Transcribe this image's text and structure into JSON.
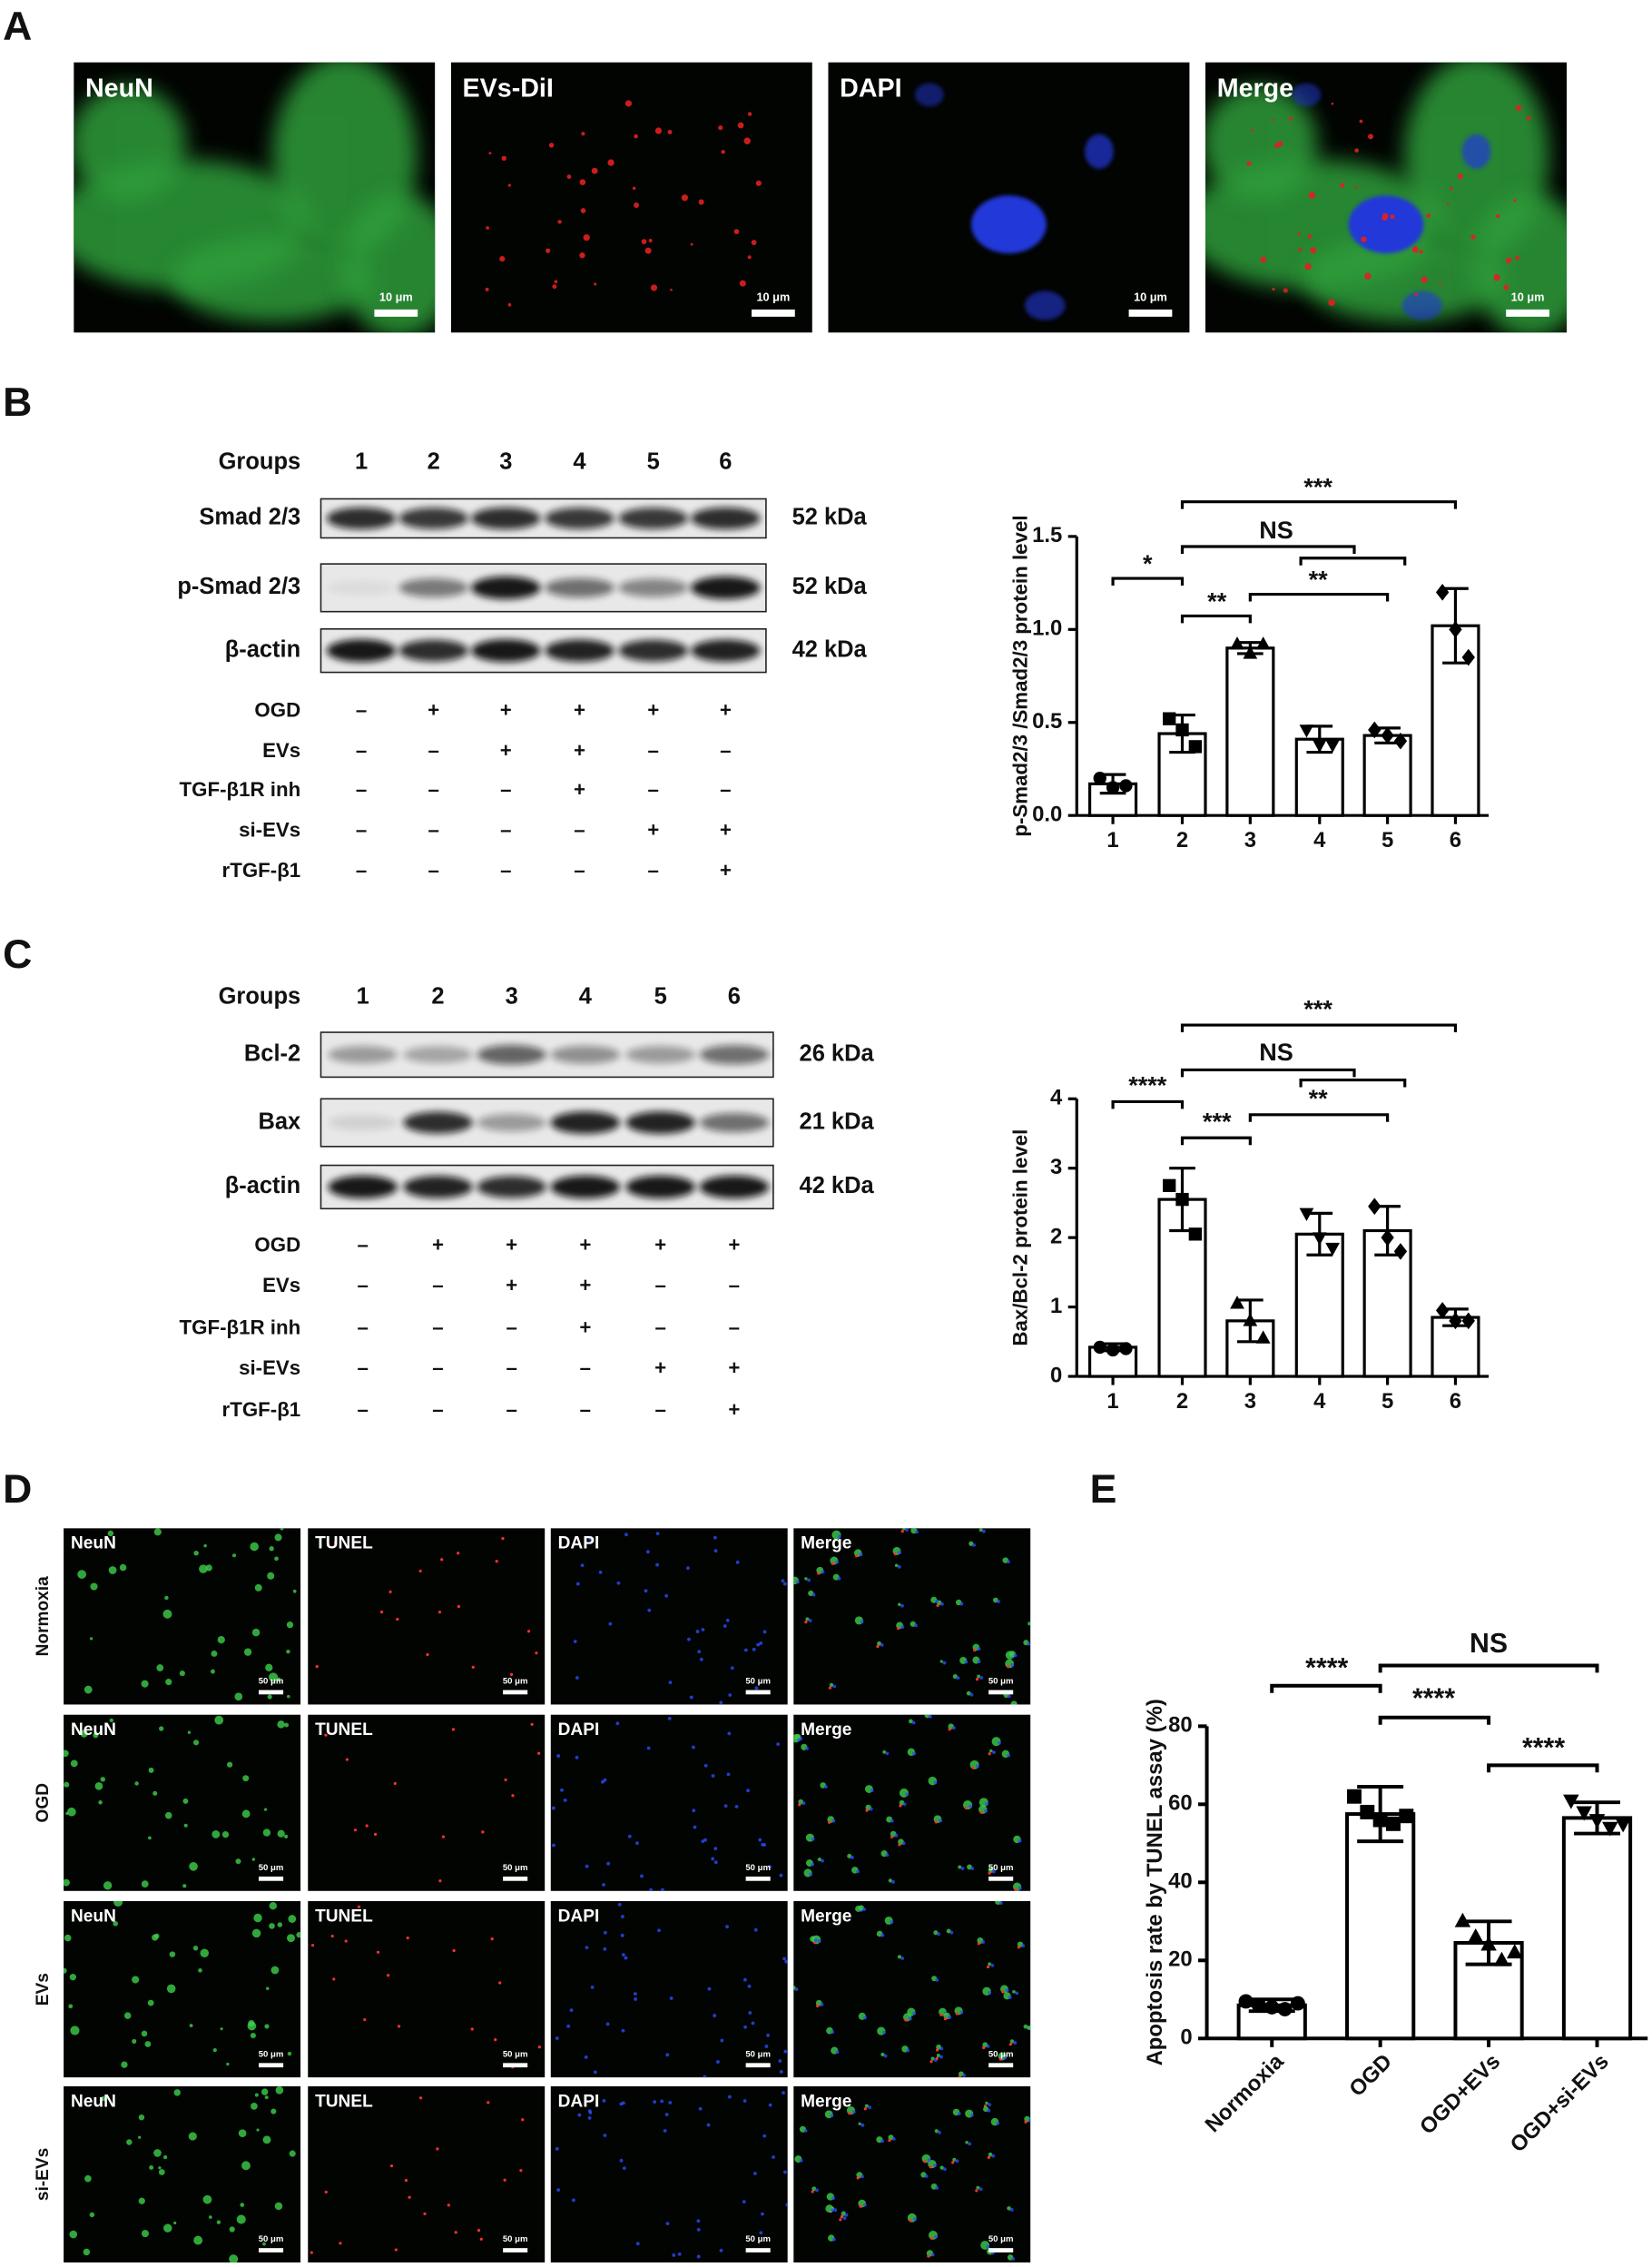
{
  "panel_labels": [
    "A",
    "B",
    "C",
    "D",
    "E"
  ],
  "panel_a": {
    "channels": [
      "NeuN",
      "EVs-DiI",
      "DAPI",
      "Merge"
    ],
    "scale_bar": "10 μm"
  },
  "panel_b_blot": {
    "groups_label": "Groups",
    "lanes": [
      "1",
      "2",
      "3",
      "4",
      "5",
      "6"
    ],
    "bands": [
      {
        "name": "Smad 2/3",
        "size": "52 kDa"
      },
      {
        "name": "p-Smad 2/3",
        "size": "52 kDa"
      },
      {
        "name": "β-actin",
        "size": "42 kDa"
      }
    ],
    "treatments": [
      {
        "name": "OGD",
        "signs": [
          "–",
          "+",
          "+",
          "+",
          "+",
          "+"
        ]
      },
      {
        "name": "EVs",
        "signs": [
          "–",
          "–",
          "+",
          "+",
          "–",
          "–"
        ]
      },
      {
        "name": "TGF-β1R inh",
        "signs": [
          "–",
          "–",
          "–",
          "+",
          "–",
          "–"
        ]
      },
      {
        "name": "si-EVs",
        "signs": [
          "–",
          "–",
          "–",
          "–",
          "+",
          "+"
        ]
      },
      {
        "name": "rTGF-β1",
        "signs": [
          "–",
          "–",
          "–",
          "–",
          "–",
          "+"
        ]
      }
    ]
  },
  "panel_c_blot": {
    "groups_label": "Groups",
    "lanes": [
      "1",
      "2",
      "3",
      "4",
      "5",
      "6"
    ],
    "bands": [
      {
        "name": "Bcl-2",
        "size": "26 kDa"
      },
      {
        "name": "Bax",
        "size": "21 kDa"
      },
      {
        "name": "β-actin",
        "size": "42 kDa"
      }
    ],
    "treatments": [
      {
        "name": "OGD",
        "signs": [
          "–",
          "+",
          "+",
          "+",
          "+",
          "+"
        ]
      },
      {
        "name": "EVs",
        "signs": [
          "–",
          "–",
          "+",
          "+",
          "–",
          "–"
        ]
      },
      {
        "name": "TGF-β1R inh",
        "signs": [
          "–",
          "–",
          "–",
          "+",
          "–",
          "–"
        ]
      },
      {
        "name": "si-EVs",
        "signs": [
          "–",
          "–",
          "–",
          "–",
          "+",
          "+"
        ]
      },
      {
        "name": "rTGF-β1",
        "signs": [
          "–",
          "–",
          "–",
          "–",
          "–",
          "+"
        ]
      }
    ]
  },
  "panel_d": {
    "rows": [
      "Normoxia",
      "OGD",
      "EVs",
      "si-EVs"
    ],
    "channels": [
      "NeuN",
      "TUNEL",
      "DAPI",
      "Merge"
    ],
    "scale_bar": "50 μm"
  },
  "chart_data": [
    {
      "type": "bar",
      "y_label": "p-Smad2/3 /Smad2/3 protein level",
      "categories": [
        "1",
        "2",
        "3",
        "4",
        "5",
        "6"
      ],
      "values": [
        0.17,
        0.44,
        0.9,
        0.41,
        0.43,
        1.02
      ],
      "errors": [
        0.05,
        0.1,
        0.03,
        0.07,
        0.04,
        0.2
      ],
      "points": [
        [
          0.2,
          0.15,
          0.16
        ],
        [
          0.52,
          0.46,
          0.37
        ],
        [
          0.92,
          0.87,
          0.92
        ],
        [
          0.46,
          0.38,
          0.38
        ],
        [
          0.46,
          0.43,
          0.4
        ],
        [
          1.2,
          1.0,
          0.85
        ]
      ],
      "markers": [
        "circle",
        "square",
        "triangle",
        "triangle-down",
        "diamond",
        "diamond"
      ],
      "ylim": [
        0,
        1.5
      ],
      "yticks": [
        {
          "value": 0,
          "label": "0.0"
        },
        0.5,
        {
          "value": 1,
          "label": "1.0"
        },
        1.5
      ],
      "color": "#ffffff",
      "annotations": [
        {
          "text": "*"
        },
        {
          "text": "**"
        },
        {
          "text": "**"
        },
        {
          "text": "NS"
        },
        {
          "text": "***"
        }
      ]
    },
    {
      "type": "bar",
      "y_label": "Bax/Bcl-2 protein level",
      "categories": [
        "1",
        "2",
        "3",
        "4",
        "5",
        "6"
      ],
      "values": [
        0.42,
        2.55,
        0.8,
        2.05,
        2.1,
        0.85
      ],
      "errors": [
        0.05,
        0.45,
        0.3,
        0.3,
        0.35,
        0.12
      ],
      "points": [
        [
          0.42,
          0.38,
          0.4
        ],
        [
          2.75,
          2.55,
          2.05
        ],
        [
          1.05,
          0.8,
          0.55
        ],
        [
          2.35,
          2.0,
          1.85
        ],
        [
          2.45,
          2.0,
          1.8
        ],
        [
          0.95,
          0.8,
          0.8
        ]
      ],
      "markers": [
        "circle",
        "square",
        "triangle",
        "triangle-down",
        "diamond",
        "diamond"
      ],
      "ylim": [
        0,
        4
      ],
      "yticks": [
        0,
        1,
        2,
        3,
        4
      ],
      "color": "#ffffff",
      "annotations": [
        {
          "text": "****"
        },
        {
          "text": "***"
        },
        {
          "text": "**"
        },
        {
          "text": "NS"
        },
        {
          "text": "***"
        }
      ]
    },
    {
      "type": "bar",
      "y_label": "Apoptosis rate by TUNEL assay (%)",
      "categories": [
        "Normoxia",
        "OGD",
        "OGD+EVs",
        "OGD+si-EVs"
      ],
      "values": [
        8.5,
        57.5,
        24.5,
        56.5
      ],
      "errors": [
        1.5,
        7,
        5.5,
        4
      ],
      "points": [
        [
          9.5,
          8.5,
          8,
          7.5,
          9
        ],
        [
          62,
          58,
          56,
          55,
          57
        ],
        [
          30,
          26,
          24,
          20,
          22
        ],
        [
          61,
          58,
          56,
          54,
          55
        ]
      ],
      "markers": [
        "circle",
        "square",
        "triangle",
        "triangle-down"
      ],
      "ylim": [
        0,
        80
      ],
      "yticks": [
        0,
        20,
        40,
        60,
        80
      ],
      "color": "#ffffff",
      "annotations": [
        {
          "text": "****"
        },
        {
          "text": "****"
        },
        {
          "text": "****"
        },
        {
          "text": "NS"
        }
      ]
    }
  ]
}
